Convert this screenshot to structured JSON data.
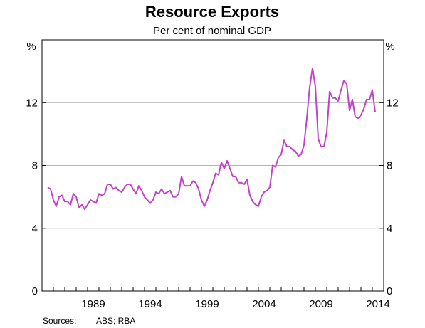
{
  "chart_data": {
    "type": "line",
    "title": "Resource Exports",
    "subtitle": "Per cent of nominal GDP",
    "y_unit_left": "%",
    "y_unit_right": "%",
    "ylim": [
      0,
      16
    ],
    "yticks": [
      0,
      4,
      8,
      12
    ],
    "ytick_labels": [
      "0",
      "4",
      "8",
      "12"
    ],
    "xlim": [
      1985.0,
      2015.0
    ],
    "xticks": [
      1989,
      1994,
      1999,
      2004,
      2009,
      2014
    ],
    "xtick_labels": [
      "1989",
      "1994",
      "1999",
      "2004",
      "2009",
      "2014"
    ],
    "grid": true,
    "series": [
      {
        "color": "#c042c8",
        "points": [
          [
            1985.5,
            6.6
          ],
          [
            1985.75,
            6.5
          ],
          [
            1986.0,
            5.8
          ],
          [
            1986.25,
            5.4
          ],
          [
            1986.5,
            6.0
          ],
          [
            1986.75,
            6.1
          ],
          [
            1987.0,
            5.7
          ],
          [
            1987.25,
            5.7
          ],
          [
            1987.5,
            5.5
          ],
          [
            1987.75,
            6.2
          ],
          [
            1988.0,
            6.0
          ],
          [
            1988.25,
            5.3
          ],
          [
            1988.5,
            5.5
          ],
          [
            1988.75,
            5.2
          ],
          [
            1989.0,
            5.5
          ],
          [
            1989.25,
            5.8
          ],
          [
            1989.5,
            5.7
          ],
          [
            1989.75,
            5.6
          ],
          [
            1990.0,
            6.2
          ],
          [
            1990.25,
            6.1
          ],
          [
            1990.5,
            6.2
          ],
          [
            1990.75,
            6.8
          ],
          [
            1991.0,
            6.8
          ],
          [
            1991.25,
            6.5
          ],
          [
            1991.5,
            6.6
          ],
          [
            1991.75,
            6.4
          ],
          [
            1992.0,
            6.3
          ],
          [
            1992.25,
            6.6
          ],
          [
            1992.5,
            6.8
          ],
          [
            1992.75,
            6.8
          ],
          [
            1993.0,
            6.5
          ],
          [
            1993.25,
            6.2
          ],
          [
            1993.5,
            6.7
          ],
          [
            1993.75,
            6.4
          ],
          [
            1994.0,
            6.0
          ],
          [
            1994.25,
            5.8
          ],
          [
            1994.5,
            5.6
          ],
          [
            1994.75,
            5.8
          ],
          [
            1995.0,
            6.3
          ],
          [
            1995.25,
            6.2
          ],
          [
            1995.5,
            6.5
          ],
          [
            1995.75,
            6.2
          ],
          [
            1996.0,
            6.3
          ],
          [
            1996.25,
            6.4
          ],
          [
            1996.5,
            6.0
          ],
          [
            1996.75,
            6.0
          ],
          [
            1997.0,
            6.2
          ],
          [
            1997.25,
            7.3
          ],
          [
            1997.5,
            6.7
          ],
          [
            1997.75,
            6.7
          ],
          [
            1998.0,
            6.7
          ],
          [
            1998.25,
            7.0
          ],
          [
            1998.5,
            6.9
          ],
          [
            1998.75,
            6.5
          ],
          [
            1999.0,
            5.8
          ],
          [
            1999.25,
            5.4
          ],
          [
            1999.5,
            5.8
          ],
          [
            1999.75,
            6.4
          ],
          [
            2000.0,
            6.9
          ],
          [
            2000.25,
            7.5
          ],
          [
            2000.5,
            7.4
          ],
          [
            2000.75,
            8.2
          ],
          [
            2001.0,
            7.8
          ],
          [
            2001.25,
            8.3
          ],
          [
            2001.5,
            7.8
          ],
          [
            2001.75,
            7.3
          ],
          [
            2002.0,
            7.3
          ],
          [
            2002.25,
            6.9
          ],
          [
            2002.5,
            6.9
          ],
          [
            2002.75,
            6.8
          ],
          [
            2003.0,
            7.1
          ],
          [
            2003.25,
            6.1
          ],
          [
            2003.5,
            5.7
          ],
          [
            2003.75,
            5.5
          ],
          [
            2004.0,
            5.4
          ],
          [
            2004.25,
            6.0
          ],
          [
            2004.5,
            6.3
          ],
          [
            2004.75,
            6.4
          ],
          [
            2005.0,
            6.6
          ],
          [
            2005.25,
            8.0
          ],
          [
            2005.5,
            7.9
          ],
          [
            2005.75,
            8.5
          ],
          [
            2006.0,
            8.7
          ],
          [
            2006.25,
            9.6
          ],
          [
            2006.5,
            9.2
          ],
          [
            2006.75,
            9.2
          ],
          [
            2007.0,
            9.0
          ],
          [
            2007.25,
            8.9
          ],
          [
            2007.5,
            8.6
          ],
          [
            2007.75,
            8.7
          ],
          [
            2008.0,
            9.3
          ],
          [
            2008.25,
            11.0
          ],
          [
            2008.5,
            13.0
          ],
          [
            2008.75,
            14.2
          ],
          [
            2009.0,
            13.0
          ],
          [
            2009.25,
            9.7
          ],
          [
            2009.5,
            9.2
          ],
          [
            2009.75,
            9.2
          ],
          [
            2010.0,
            10.1
          ],
          [
            2010.25,
            12.7
          ],
          [
            2010.5,
            12.3
          ],
          [
            2010.75,
            12.3
          ],
          [
            2011.0,
            12.1
          ],
          [
            2011.25,
            12.8
          ],
          [
            2011.5,
            13.4
          ],
          [
            2011.75,
            13.2
          ],
          [
            2012.0,
            11.5
          ],
          [
            2012.25,
            12.2
          ],
          [
            2012.5,
            11.1
          ],
          [
            2012.75,
            11.0
          ],
          [
            2013.0,
            11.2
          ],
          [
            2013.25,
            11.6
          ],
          [
            2013.5,
            12.2
          ],
          [
            2013.75,
            12.2
          ],
          [
            2014.0,
            12.8
          ],
          [
            2014.25,
            11.4
          ]
        ]
      }
    ],
    "sources_label": "Sources:",
    "sources_text": "ABS; RBA"
  }
}
